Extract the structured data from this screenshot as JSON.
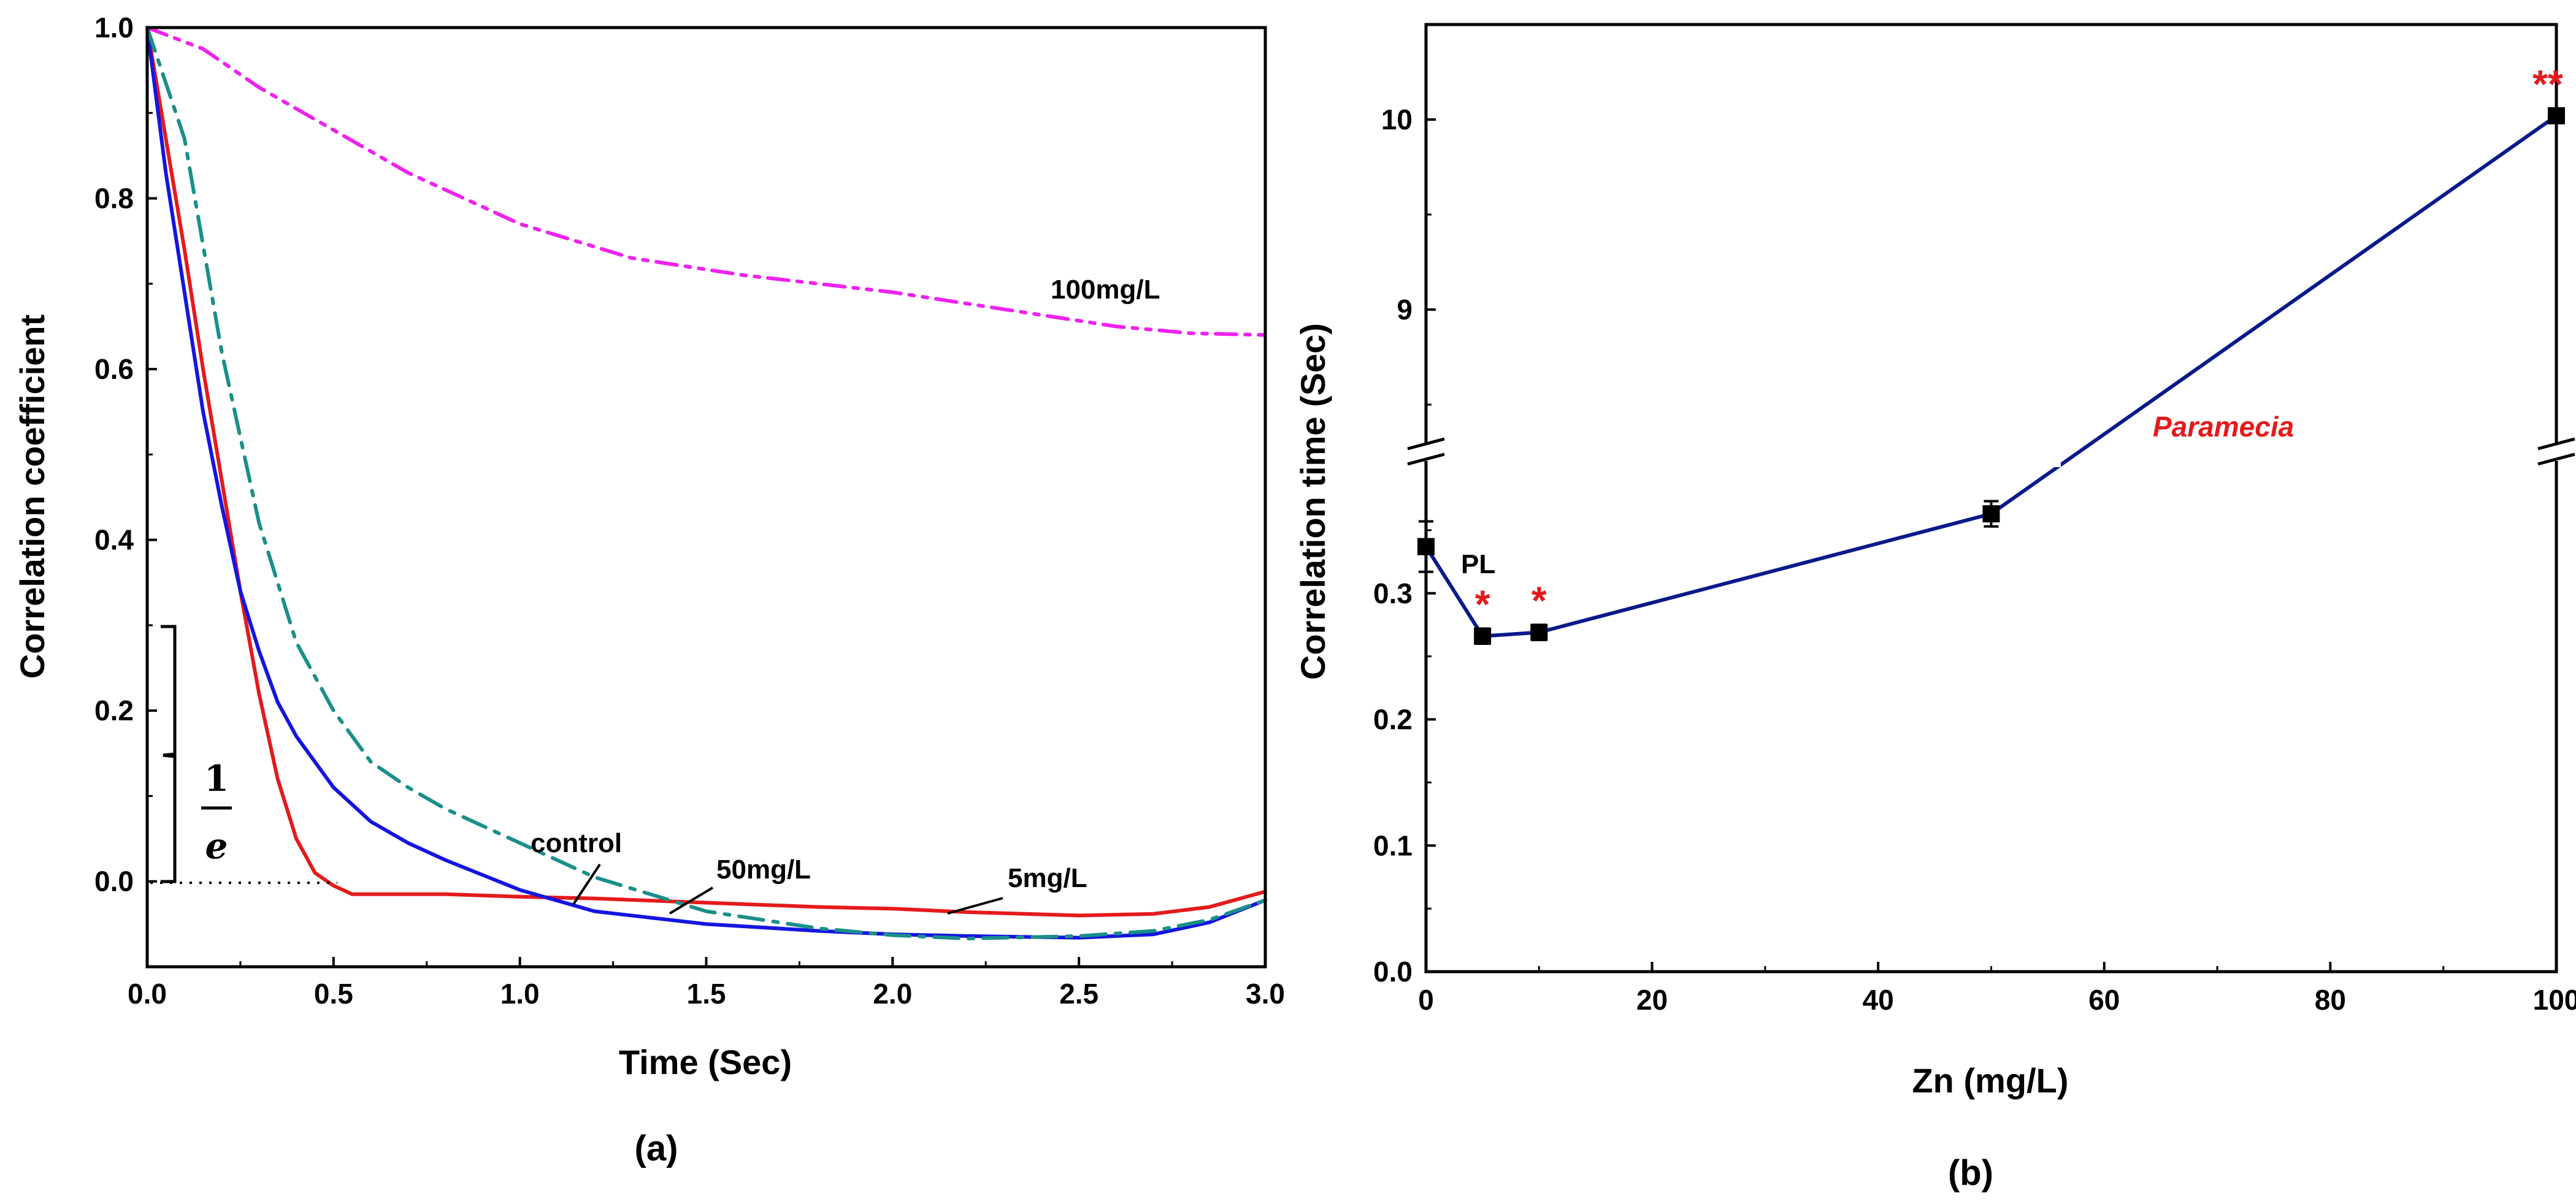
{
  "chart_data": [
    {
      "type": "line",
      "panel_label": "(a)",
      "xlabel": "Time (Sec)",
      "ylabel": "Correlation coefficient",
      "xlim": [
        0,
        3.0
      ],
      "ylim": [
        -0.1,
        1.0
      ],
      "x_ticks": [
        "0.0",
        "0.5",
        "1.0",
        "1.5",
        "2.0",
        "2.5",
        "3.0"
      ],
      "y_ticks": [
        "0.0",
        "0.2",
        "0.4",
        "0.6",
        "0.8",
        "1.0"
      ],
      "inv_e_numerator": "1",
      "inv_e_denominator": "e",
      "series": [
        {
          "name": "control",
          "color": "#e41a1c",
          "style": "solid",
          "x": [
            0,
            0.05,
            0.1,
            0.15,
            0.2,
            0.25,
            0.3,
            0.35,
            0.4,
            0.45,
            0.5,
            0.55,
            0.6,
            0.8,
            1.0,
            1.2,
            1.5,
            1.8,
            2.0,
            2.2,
            2.5,
            2.7,
            2.85,
            3.0
          ],
          "y": [
            1.0,
            0.87,
            0.74,
            0.6,
            0.47,
            0.34,
            0.22,
            0.12,
            0.05,
            0.01,
            -0.005,
            -0.015,
            -0.015,
            -0.015,
            -0.018,
            -0.02,
            -0.025,
            -0.03,
            -0.032,
            -0.036,
            -0.04,
            -0.038,
            -0.03,
            -0.012
          ]
        },
        {
          "name": "5mg/L",
          "color": "#1515e0",
          "style": "solid",
          "x": [
            0,
            0.05,
            0.1,
            0.15,
            0.2,
            0.25,
            0.3,
            0.35,
            0.4,
            0.5,
            0.6,
            0.7,
            0.8,
            1.0,
            1.2,
            1.5,
            1.8,
            2.0,
            2.2,
            2.5,
            2.7,
            2.85,
            3.0
          ],
          "y": [
            1.0,
            0.83,
            0.69,
            0.55,
            0.44,
            0.34,
            0.27,
            0.21,
            0.17,
            0.11,
            0.07,
            0.045,
            0.025,
            -0.01,
            -0.035,
            -0.05,
            -0.058,
            -0.062,
            -0.064,
            -0.066,
            -0.062,
            -0.048,
            -0.022
          ]
        },
        {
          "name": "50mg/L",
          "color": "#1a8f8a",
          "style": "dashdot",
          "x": [
            0,
            0.1,
            0.2,
            0.3,
            0.4,
            0.5,
            0.6,
            0.7,
            0.8,
            1.0,
            1.2,
            1.5,
            1.8,
            2.0,
            2.2,
            2.5,
            2.7,
            2.85,
            3.0
          ],
          "y": [
            1.0,
            0.87,
            0.62,
            0.42,
            0.28,
            0.2,
            0.14,
            0.11,
            0.085,
            0.045,
            0.005,
            -0.035,
            -0.055,
            -0.063,
            -0.067,
            -0.064,
            -0.058,
            -0.045,
            -0.022
          ]
        },
        {
          "name": "100mg/L",
          "color": "#ee22ee",
          "style": "dashdotdot",
          "x": [
            0,
            0.15,
            0.3,
            0.5,
            0.7,
            1.0,
            1.3,
            1.6,
            2.0,
            2.3,
            2.6,
            2.8,
            3.0
          ],
          "y": [
            1.0,
            0.975,
            0.93,
            0.88,
            0.83,
            0.77,
            0.73,
            0.71,
            0.69,
            0.67,
            0.65,
            0.642,
            0.64
          ]
        }
      ],
      "labels": {
        "control": "control",
        "m50": "50mg/L",
        "m5": "5mg/L",
        "m100": "100mg/L"
      }
    },
    {
      "type": "line",
      "panel_label": "(b)",
      "xlabel": "Zn (mg/L)",
      "ylabel": "Correlation time (Sec)",
      "xlim": [
        0,
        100
      ],
      "y_lower": [
        0.0,
        0.4
      ],
      "y_upper": [
        8.3,
        10.5
      ],
      "x_ticks": [
        "0",
        "20",
        "40",
        "60",
        "80",
        "100"
      ],
      "y_ticks_lower": [
        "0.0",
        "0.1",
        "0.2",
        "0.3"
      ],
      "y_ticks_upper": [
        "9",
        "10"
      ],
      "series": [
        {
          "name": "Paramecia",
          "color": "#0a1a8a",
          "x": [
            0,
            5,
            10,
            50,
            100
          ],
          "y": [
            0.337,
            0.266,
            0.269,
            0.363,
            10.02
          ],
          "err": [
            0.02,
            0.006,
            0.006,
            0.01,
            0.03
          ],
          "significance": [
            "",
            "*",
            "*",
            "",
            "**"
          ]
        }
      ],
      "labels": {
        "pl": "PL",
        "species": "Paramecia"
      }
    }
  ]
}
